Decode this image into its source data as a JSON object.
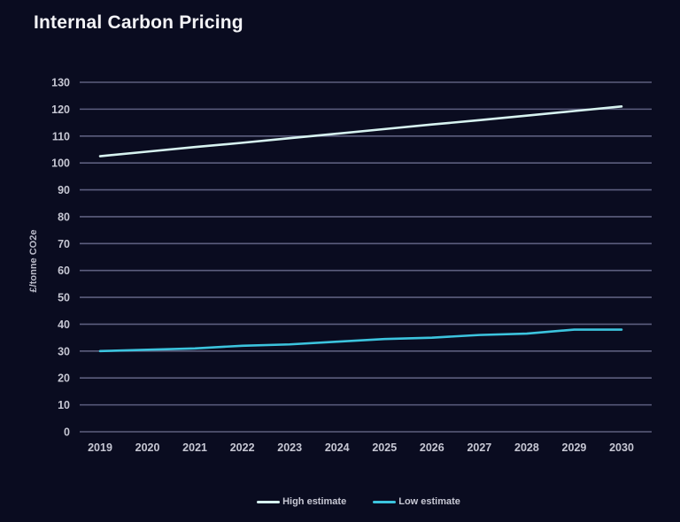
{
  "title": "Internal Carbon Pricing",
  "colors": {
    "background": "#0a0c20",
    "grid": "#5c5e7e",
    "title_text": "#f3f3f6",
    "tick_text": "#c6c7d3",
    "high_line": "#d7f3f0",
    "low_line": "#3cc4de"
  },
  "chart_data": {
    "type": "line",
    "title": "Internal Carbon Pricing",
    "xlabel": "",
    "ylabel": "£/tonne CO2e",
    "x": [
      2019,
      2020,
      2021,
      2022,
      2023,
      2024,
      2025,
      2026,
      2027,
      2028,
      2029,
      2030
    ],
    "ylim": [
      0,
      130
    ],
    "ytick_step": 10,
    "grid": true,
    "legend_position": "bottom",
    "series": [
      {
        "name": "High estimate",
        "color": "#d7f3f0",
        "values": [
          102.5,
          104.2,
          105.9,
          107.5,
          109.2,
          110.9,
          112.6,
          114.3,
          115.9,
          117.6,
          119.3,
          121
        ]
      },
      {
        "name": "Low estimate",
        "color": "#3cc4de",
        "values": [
          30,
          30.5,
          31,
          32,
          32.5,
          33.5,
          34.5,
          35,
          36,
          36.5,
          38,
          38
        ]
      }
    ]
  }
}
